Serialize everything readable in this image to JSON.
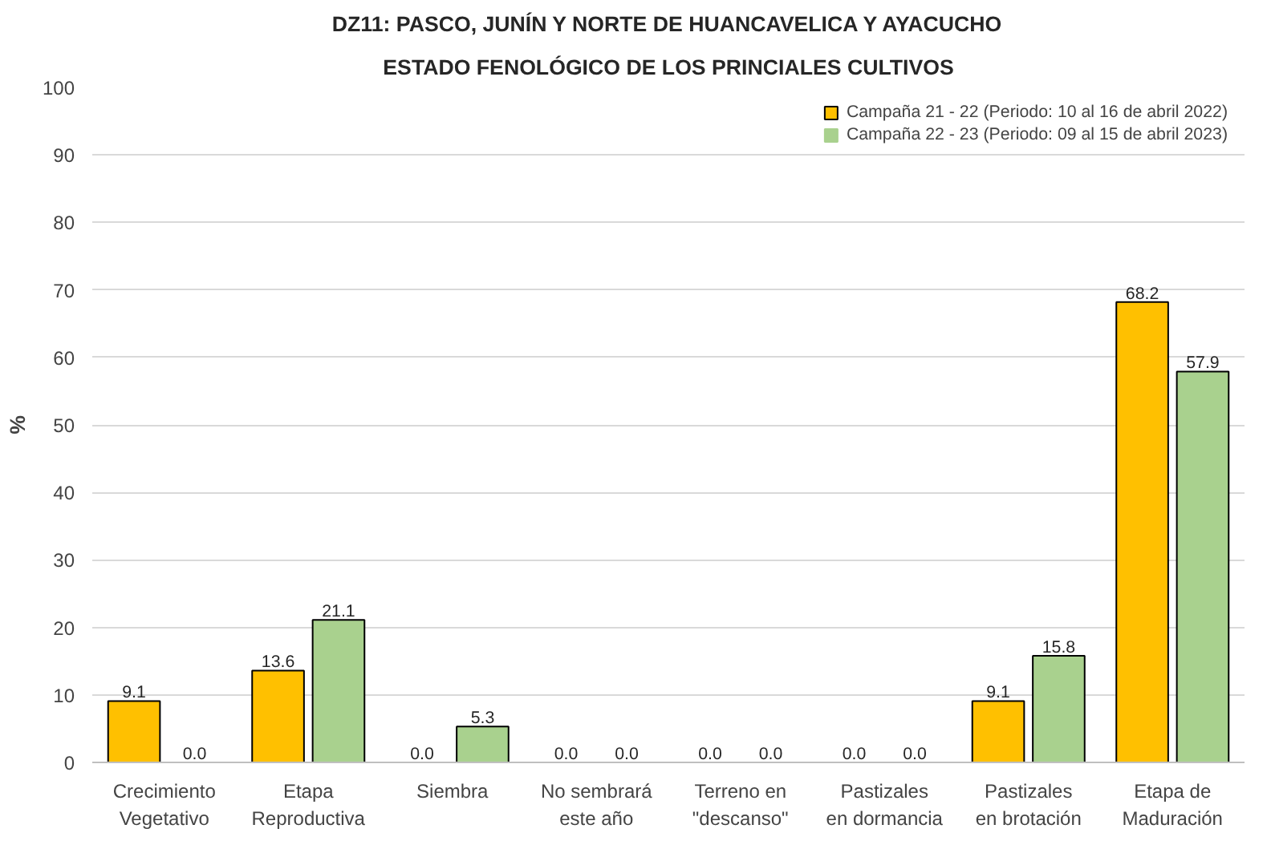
{
  "chart_data": {
    "type": "bar",
    "title": "DZ11: PASCO, JUNÍN Y NORTE DE HUANCAVELICA Y AYACUCHO",
    "subtitle": "ESTADO FENOLÓGICO DE LOS PRINCIALES CULTIVOS",
    "ylabel": "%",
    "categories": [
      "Crecimiento Vegetativo",
      "Etapa Reproductiva",
      "Siembra",
      "No sembrará este año",
      "Terreno en \"descanso\"",
      "Pastizales en dormancia",
      "Pastizales en brotación",
      "Etapa de Maduración"
    ],
    "series": [
      {
        "name": "Campaña 21 - 22 (Periodo: 10 al 16 de abril 2022)",
        "color": "#ffc000",
        "values": [
          9.1,
          13.6,
          0.0,
          0.0,
          0.0,
          0.0,
          9.1,
          68.2
        ],
        "value_labels": [
          "9.1",
          "13.6",
          "0.0",
          "0.0",
          "0.0",
          "0.0",
          "9.1",
          "68.2"
        ]
      },
      {
        "name": "Campaña 22 - 23 (Periodo: 09 al 15 de abril 2023)",
        "color": "#a9d18e",
        "values": [
          0.0,
          21.1,
          5.3,
          0.0,
          0.0,
          0.0,
          15.8,
          57.9
        ],
        "value_labels": [
          "0.0",
          "21.1",
          "5.3",
          "0.0",
          "0.0",
          "0.0",
          "15.8",
          "57.9"
        ]
      }
    ],
    "ylim": [
      0,
      100
    ],
    "yticks": [
      0,
      10,
      20,
      30,
      40,
      50,
      60,
      70,
      80,
      90,
      100
    ],
    "grid": "y",
    "legend": "top right"
  }
}
